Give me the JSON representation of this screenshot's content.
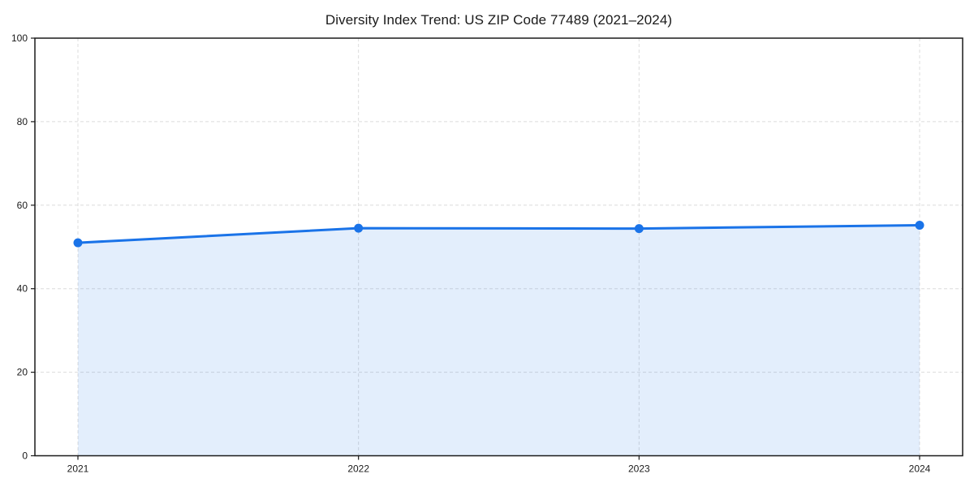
{
  "chart_data": {
    "type": "area",
    "title": "Diversity Index Trend: US ZIP Code 77489 (2021–2024)",
    "categories": [
      "2021",
      "2022",
      "2023",
      "2024"
    ],
    "series": [
      {
        "name": "Diversity Index",
        "values": [
          51.0,
          54.5,
          54.4,
          55.2
        ]
      }
    ],
    "xlabel": "",
    "ylabel": "",
    "ylim": [
      0,
      100
    ],
    "yticks": [
      0,
      20,
      40,
      60,
      80,
      100
    ],
    "grid": true,
    "grid_style": "dashed",
    "legend": false,
    "markers": true,
    "colors": {
      "line": "#1a73e8",
      "fill": "rgba(26,115,232,0.12)",
      "grid": "#dcdcdc",
      "axis": "#1a1a1a",
      "text": "#1a1a1a",
      "background": "#ffffff"
    }
  }
}
